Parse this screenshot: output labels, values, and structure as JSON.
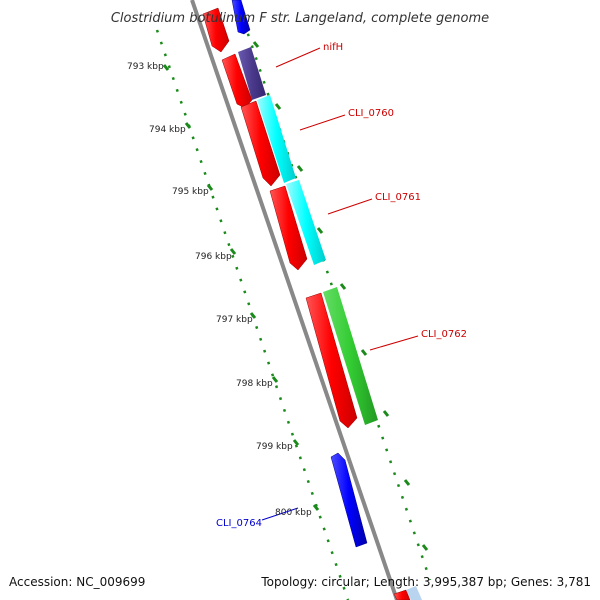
{
  "title": "Clostridium botulinum F str. Langeland, complete genome",
  "footer": {
    "accession": "Accession: NC_009699",
    "summary": "Topology: circular; Length: 3,995,387 bp; Genes: 3,781"
  },
  "ticks": [
    "793 kbp",
    "794 kbp",
    "795 kbp",
    "796 kbp",
    "797 kbp",
    "798 kbp",
    "799 kbp",
    "800 kbp"
  ],
  "gene_labels": [
    {
      "name": "nifH",
      "color": "#cc0000"
    },
    {
      "name": "CLI_0760",
      "color": "#cc0000"
    },
    {
      "name": "CLI_0761",
      "color": "#cc0000"
    },
    {
      "name": "CLI_0762",
      "color": "#cc0000"
    },
    {
      "name": "CLI_0764",
      "color": "#0000cc"
    }
  ],
  "colors": {
    "backbone": "#888888",
    "tick_dots": "#1a8a1a",
    "cds": "#ff0000",
    "cds_reverse": "#0000ff",
    "nifH_feature": "#4b3a8c",
    "cli0760_feature": "#00ffff",
    "cli0762_feature": "#33cc33"
  }
}
